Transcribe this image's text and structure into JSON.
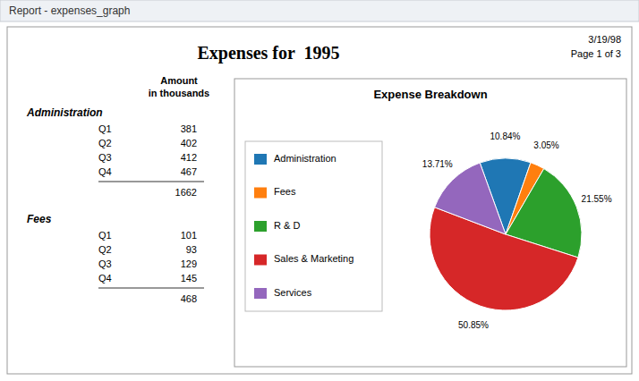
{
  "window_title": "Report - expenses_graph",
  "title": "Expenses for  1995",
  "date": "3/19/98",
  "page": "Page 1 of 3",
  "column_header": [
    "Amount",
    "in thousands"
  ],
  "chart_data": [
    {
      "type": "table",
      "title": "Administration",
      "categories": [
        "Q1",
        "Q2",
        "Q3",
        "Q4"
      ],
      "values": [
        381,
        402,
        412,
        467
      ],
      "total": 1662
    },
    {
      "type": "table",
      "title": "Fees",
      "categories": [
        "Q1",
        "Q2",
        "Q3",
        "Q4"
      ],
      "values": [
        101,
        93,
        129,
        145
      ],
      "total": 468
    },
    {
      "type": "pie",
      "title": "Expense Breakdown",
      "categories": [
        "Administration",
        "Fees",
        "R & D",
        "Sales & Marketing",
        "Services"
      ],
      "values": [
        10.84,
        3.05,
        21.55,
        50.85,
        13.71
      ],
      "value_labels": [
        "10.84%",
        "3.05%",
        "21.55%",
        "50.85%",
        "13.71%"
      ],
      "data_labels": true,
      "legend": "left"
    }
  ]
}
